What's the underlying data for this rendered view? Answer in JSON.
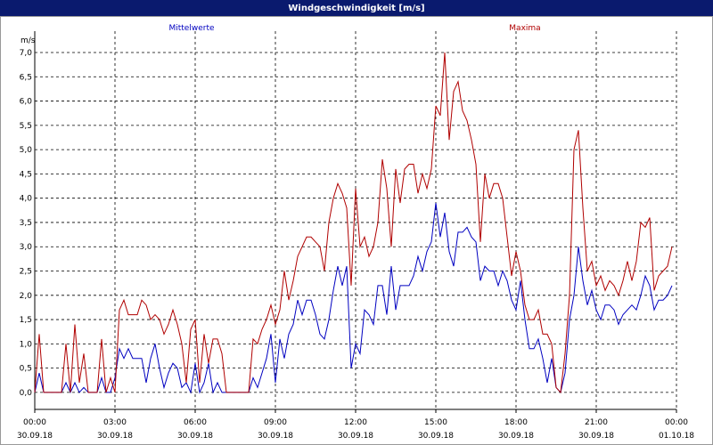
{
  "chart_data": {
    "type": "line",
    "title": "Windgeschwindigkeit [m/s]",
    "y_unit": "m/s",
    "x": [
      0,
      10,
      20,
      30,
      40,
      50,
      60,
      70,
      80,
      90,
      100,
      110,
      120,
      130,
      140,
      150,
      160,
      170,
      180,
      190,
      200,
      210,
      220,
      230,
      240,
      250,
      260,
      270,
      280,
      290,
      300,
      310,
      320,
      330,
      340,
      350,
      360,
      370,
      380,
      390,
      400,
      410,
      420,
      430,
      440,
      450,
      460,
      470,
      480,
      490,
      500,
      510,
      520,
      530,
      540,
      550,
      560,
      570,
      580,
      590,
      600,
      610,
      620,
      630,
      640,
      650,
      660,
      670,
      680,
      690,
      700,
      710,
      720,
      730,
      740,
      750,
      760,
      770,
      780,
      790,
      800,
      810,
      820,
      830,
      840,
      850,
      860,
      870,
      880,
      890,
      900,
      910,
      920,
      930,
      940,
      950,
      960,
      970,
      980,
      990,
      1000,
      1010,
      1020,
      1030,
      1040,
      1050,
      1060,
      1070,
      1080,
      1090,
      1100,
      1110,
      1120,
      1130,
      1140,
      1150,
      1160,
      1170,
      1180,
      1190,
      1200,
      1210,
      1220,
      1230,
      1240,
      1250,
      1260,
      1270,
      1280,
      1290,
      1300,
      1310,
      1320,
      1330,
      1340,
      1350,
      1360,
      1370,
      1380,
      1390,
      1400,
      1410,
      1420,
      1430
    ],
    "series": [
      {
        "name": "Mittelwerte",
        "color": "#0000c0",
        "values": [
          0.0,
          0.4,
          0.0,
          0.0,
          0.0,
          0.0,
          0.0,
          0.2,
          0.0,
          0.2,
          0.0,
          0.1,
          0.0,
          0.0,
          0.0,
          0.3,
          0.0,
          0.0,
          0.3,
          0.9,
          0.7,
          0.9,
          0.7,
          0.7,
          0.7,
          0.2,
          0.7,
          1.0,
          0.5,
          0.1,
          0.4,
          0.6,
          0.5,
          0.1,
          0.2,
          0.0,
          0.6,
          0.0,
          0.2,
          0.6,
          0.0,
          0.2,
          0.0,
          0.0,
          0.0,
          0.0,
          0.0,
          0.0,
          0.0,
          0.3,
          0.1,
          0.4,
          0.7,
          1.2,
          0.2,
          1.1,
          0.7,
          1.2,
          1.4,
          1.9,
          1.6,
          1.9,
          1.9,
          1.6,
          1.2,
          1.1,
          1.5,
          2.1,
          2.6,
          2.2,
          2.6,
          0.5,
          1.0,
          0.8,
          1.7,
          1.6,
          1.4,
          2.2,
          2.2,
          1.6,
          2.6,
          1.7,
          2.2,
          2.2,
          2.2,
          2.4,
          2.8,
          2.5,
          2.9,
          3.1,
          3.9,
          3.2,
          3.7,
          2.9,
          2.6,
          3.3,
          3.3,
          3.4,
          3.2,
          3.1,
          2.3,
          2.6,
          2.5,
          2.5,
          2.2,
          2.5,
          2.3,
          1.9,
          1.7,
          2.3,
          1.5,
          0.9,
          0.9,
          1.1,
          0.7,
          0.2,
          0.7,
          0.1,
          0.0,
          0.4,
          1.5,
          2.0,
          3.0,
          2.3,
          1.8,
          2.1,
          1.7,
          1.5,
          1.8,
          1.8,
          1.7,
          1.4,
          1.6,
          1.7,
          1.8,
          1.7,
          2.0,
          2.4,
          2.2,
          1.7,
          1.9,
          1.9,
          2.0,
          2.2
        ]
      },
      {
        "name": "Maxima",
        "color": "#b00000",
        "values": [
          0.0,
          1.2,
          0.0,
          0.0,
          0.0,
          0.0,
          0.0,
          1.0,
          0.0,
          1.4,
          0.2,
          0.8,
          0.0,
          0.0,
          0.0,
          1.1,
          0.0,
          0.3,
          0.0,
          1.7,
          1.9,
          1.6,
          1.6,
          1.6,
          1.9,
          1.8,
          1.5,
          1.6,
          1.5,
          1.2,
          1.4,
          1.7,
          1.4,
          1.0,
          0.2,
          1.3,
          1.5,
          0.2,
          1.2,
          0.6,
          1.1,
          1.1,
          0.8,
          0.0,
          0.0,
          0.0,
          0.0,
          0.0,
          0.0,
          1.1,
          1.0,
          1.3,
          1.5,
          1.8,
          1.4,
          1.7,
          2.5,
          1.9,
          2.3,
          2.8,
          3.0,
          3.2,
          3.2,
          3.1,
          3.0,
          2.5,
          3.5,
          4.0,
          4.3,
          4.1,
          3.8,
          2.2,
          4.2,
          3.0,
          3.2,
          2.8,
          3.0,
          3.5,
          4.8,
          4.2,
          3.0,
          4.6,
          3.9,
          4.6,
          4.7,
          4.7,
          4.1,
          4.5,
          4.2,
          4.6,
          5.9,
          5.7,
          7.0,
          5.2,
          6.2,
          6.4,
          5.8,
          5.6,
          5.2,
          4.7,
          3.1,
          4.5,
          4.0,
          4.3,
          4.3,
          4.0,
          3.2,
          2.4,
          2.9,
          2.5,
          1.8,
          1.5,
          1.5,
          1.7,
          1.2,
          1.2,
          1.0,
          0.1,
          0.0,
          0.8,
          2.0,
          5.0,
          5.4,
          3.8,
          2.5,
          2.7,
          2.2,
          2.4,
          2.1,
          2.3,
          2.2,
          2.0,
          2.3,
          2.7,
          2.3,
          2.7,
          3.5,
          3.4,
          3.6,
          2.1,
          2.4,
          2.5,
          2.6,
          3.0
        ]
      }
    ],
    "xlim": [
      0,
      1440
    ],
    "xticks": [
      {
        "value": 0,
        "label": "00:00"
      },
      {
        "value": 180,
        "label": "03:00"
      },
      {
        "value": 360,
        "label": "06:00"
      },
      {
        "value": 540,
        "label": "09:00"
      },
      {
        "value": 720,
        "label": "12:00"
      },
      {
        "value": 900,
        "label": "15:00"
      },
      {
        "value": 1080,
        "label": "18:00"
      },
      {
        "value": 1260,
        "label": "21:00"
      },
      {
        "value": 1440,
        "label": "00:00"
      }
    ],
    "xtick_dates": [
      "30.09.18",
      "30.09.18",
      "30.09.18",
      "30.09.18",
      "30.09.18",
      "30.09.18",
      "30.09.18",
      "30.09.18",
      "01.10.18"
    ],
    "ylim": [
      -0.35,
      7.44
    ],
    "yticks": [
      {
        "value": 0,
        "label": "0,0"
      },
      {
        "value": 0.5,
        "label": "0,5"
      },
      {
        "value": 1,
        "label": "1,0"
      },
      {
        "value": 1.5,
        "label": "1,5"
      },
      {
        "value": 2,
        "label": "2,0"
      },
      {
        "value": 2.5,
        "label": "2,5"
      },
      {
        "value": 3,
        "label": "3,0"
      },
      {
        "value": 3.5,
        "label": "3,5"
      },
      {
        "value": 4,
        "label": "4,0"
      },
      {
        "value": 4.5,
        "label": "4,5"
      },
      {
        "value": 5,
        "label": "5,0"
      },
      {
        "value": 5.5,
        "label": "5,5"
      },
      {
        "value": 6,
        "label": "6,0"
      },
      {
        "value": 6.5,
        "label": "6,5"
      },
      {
        "value": 7,
        "label": "7,0"
      }
    ],
    "grid": true
  }
}
